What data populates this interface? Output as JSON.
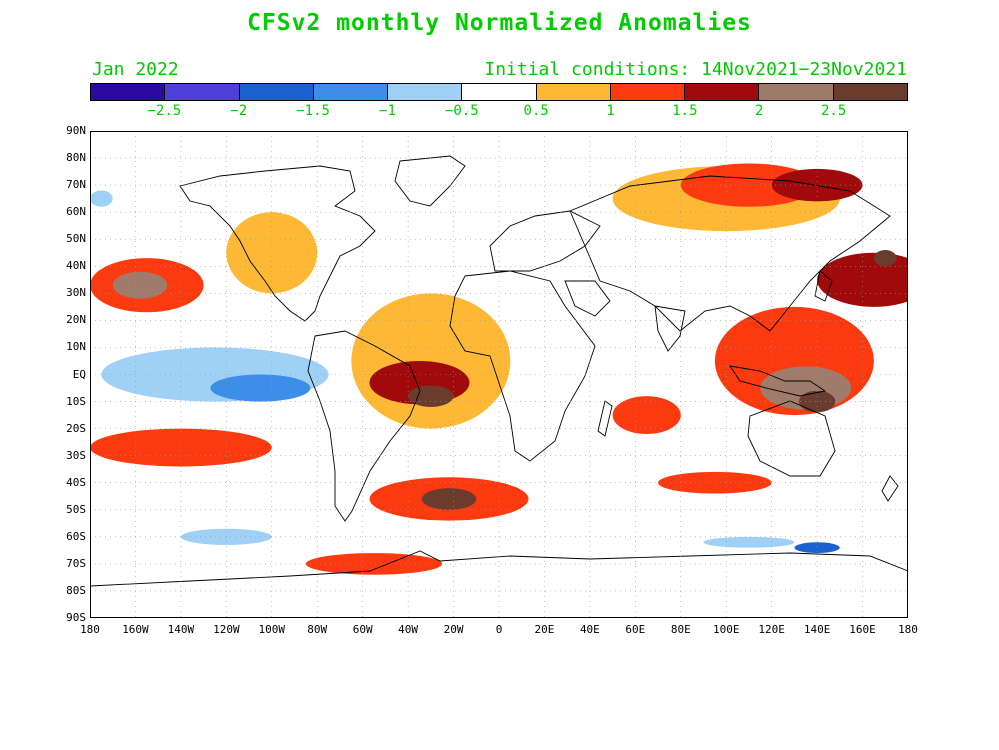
{
  "title": "CFSv2 monthly Normalized Anomalies",
  "forecast_month": "Jan 2022",
  "initial_conditions": "Initial conditions: 14Nov2021−23Nov2021",
  "colorbar": {
    "colors": [
      "#2a0aa0",
      "#4d3fd8",
      "#1b62d0",
      "#3c8ee8",
      "#9fd0f5",
      "#ffffff",
      "#fdb835",
      "#fb3a10",
      "#a00a0a",
      "#a07a6a",
      "#6a3c2e"
    ],
    "tick_labels": [
      "−2.5",
      "−2",
      "−1.5",
      "−1",
      "−0.5",
      "0.5",
      "1",
      "1.5",
      "2",
      "2.5"
    ],
    "tick_values": [
      -2.5,
      -2,
      -1.5,
      -1,
      -0.5,
      0.5,
      1,
      1.5,
      2,
      2.5
    ]
  },
  "map": {
    "projection": "equirectangular",
    "lon_range": [
      -180,
      180
    ],
    "lat_range": [
      -90,
      90
    ],
    "lat_labels": [
      "90N",
      "80N",
      "70N",
      "60N",
      "50N",
      "40N",
      "30N",
      "20N",
      "10N",
      "EQ",
      "10S",
      "20S",
      "30S",
      "40S",
      "50S",
      "60S",
      "70S",
      "80S",
      "90S"
    ],
    "lon_labels": [
      "180",
      "160W",
      "140W",
      "120W",
      "100W",
      "80W",
      "60W",
      "40W",
      "20W",
      "0",
      "20E",
      "40E",
      "60E",
      "80E",
      "100E",
      "120E",
      "140E",
      "160E",
      "180"
    ],
    "anomaly_regions": [
      {
        "lon": -125,
        "lat": 0,
        "rx": 50,
        "ry": 10,
        "value": -1
      },
      {
        "lon": -105,
        "lat": -5,
        "rx": 22,
        "ry": 5,
        "value": -1.5
      },
      {
        "lon": -155,
        "lat": 33,
        "rx": 25,
        "ry": 10,
        "value": 1
      },
      {
        "lon": -158,
        "lat": 33,
        "rx": 12,
        "ry": 5,
        "value": 2
      },
      {
        "lon": -140,
        "lat": -27,
        "rx": 40,
        "ry": 7,
        "value": 1
      },
      {
        "lon": -30,
        "lat": 5,
        "rx": 35,
        "ry": 25,
        "value": 0.5
      },
      {
        "lon": -35,
        "lat": -3,
        "rx": 22,
        "ry": 8,
        "value": 1.5
      },
      {
        "lon": -30,
        "lat": -8,
        "rx": 10,
        "ry": 4,
        "value": 2.5
      },
      {
        "lon": -22,
        "lat": -46,
        "rx": 35,
        "ry": 8,
        "value": 1
      },
      {
        "lon": -22,
        "lat": -46,
        "rx": 12,
        "ry": 4,
        "value": 2.5
      },
      {
        "lon": -55,
        "lat": -70,
        "rx": 30,
        "ry": 4,
        "value": 1
      },
      {
        "lon": 130,
        "lat": 5,
        "rx": 35,
        "ry": 20,
        "value": 1
      },
      {
        "lon": 135,
        "lat": -5,
        "rx": 20,
        "ry": 8,
        "value": 2
      },
      {
        "lon": 140,
        "lat": -10,
        "rx": 8,
        "ry": 4,
        "value": 2.5
      },
      {
        "lon": 165,
        "lat": 35,
        "rx": 25,
        "ry": 10,
        "value": 1.5
      },
      {
        "lon": 170,
        "lat": 43,
        "rx": 5,
        "ry": 3,
        "value": 2.5
      },
      {
        "lon": 100,
        "lat": 65,
        "rx": 50,
        "ry": 12,
        "value": 0.5
      },
      {
        "lon": 110,
        "lat": 70,
        "rx": 30,
        "ry": 8,
        "value": 1
      },
      {
        "lon": 65,
        "lat": -15,
        "rx": 15,
        "ry": 7,
        "value": 1
      },
      {
        "lon": 95,
        "lat": -40,
        "rx": 25,
        "ry": 4,
        "value": 1
      },
      {
        "lon": 110,
        "lat": -62,
        "rx": 20,
        "ry": 2,
        "value": -1
      },
      {
        "lon": 140,
        "lat": -64,
        "rx": 10,
        "ry": 2,
        "value": -2
      },
      {
        "lon": -150,
        "lat": -55,
        "rx": 40,
        "ry": 5,
        "value": -0.5
      },
      {
        "lon": -120,
        "lat": -60,
        "rx": 20,
        "ry": 3,
        "value": -1
      },
      {
        "lon": -100,
        "lat": 45,
        "rx": 20,
        "ry": 15,
        "value": 0.5
      },
      {
        "lon": -40,
        "lat": 70,
        "rx": 15,
        "ry": 6,
        "value": -0.5
      },
      {
        "lon": 140,
        "lat": 70,
        "rx": 20,
        "ry": 6,
        "value": 1.5
      },
      {
        "lon": -175,
        "lat": 65,
        "rx": 5,
        "ry": 3,
        "value": -1
      }
    ]
  }
}
